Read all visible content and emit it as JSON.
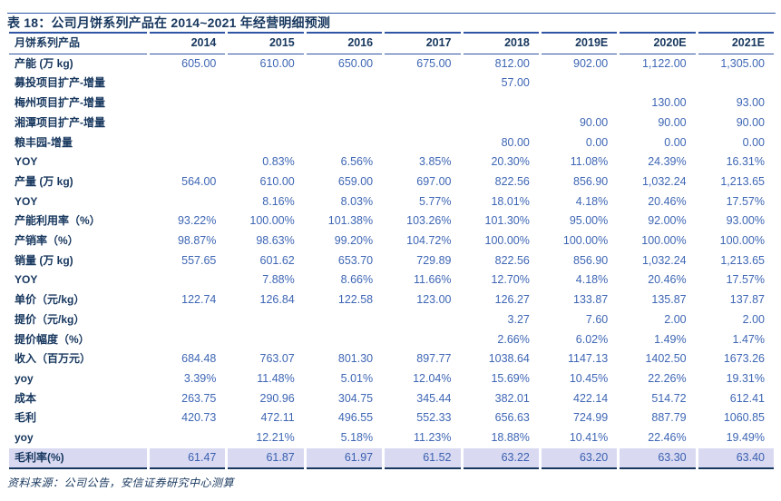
{
  "title": "表 18：公司月饼系列产品在 2014~2021 年经营明细预测",
  "source_note": "资料来源：公司公告，安信证券研究中心测算",
  "colors": {
    "title_navy": "#17375e",
    "number_blue": "#3e66b4",
    "rule": "#2f55a4",
    "highlight_bg": "#d9daf2"
  },
  "table": {
    "columns": [
      "月饼系列产品",
      "2014",
      "2015",
      "2016",
      "2017",
      "2018",
      "2019E",
      "2020E",
      "2021E"
    ],
    "rows": [
      {
        "label": "产能 (万 kg)",
        "values": [
          "605.00",
          "610.00",
          "650.00",
          "675.00",
          "812.00",
          "902.00",
          "1,122.00",
          "1,305.00"
        ]
      },
      {
        "label": "募投项目扩产-增量",
        "values": [
          "",
          "",
          "",
          "",
          "57.00",
          "",
          "",
          ""
        ]
      },
      {
        "label": "梅州项目扩产-增量",
        "values": [
          "",
          "",
          "",
          "",
          "",
          "",
          "130.00",
          "93.00"
        ]
      },
      {
        "label": "湘潭项目扩产-增量",
        "values": [
          "",
          "",
          "",
          "",
          "",
          "90.00",
          "90.00",
          "90.00"
        ]
      },
      {
        "label": "粮丰园-增量",
        "values": [
          "",
          "",
          "",
          "",
          "80.00",
          "0.00",
          "0.00",
          "0.00"
        ]
      },
      {
        "label": "YOY",
        "values": [
          "",
          "0.83%",
          "6.56%",
          "3.85%",
          "20.30%",
          "11.08%",
          "24.39%",
          "16.31%"
        ]
      },
      {
        "label": "产量 (万 kg)",
        "values": [
          "564.00",
          "610.00",
          "659.00",
          "697.00",
          "822.56",
          "856.90",
          "1,032.24",
          "1,213.65"
        ]
      },
      {
        "label": "YOY",
        "values": [
          "",
          "8.16%",
          "8.03%",
          "5.77%",
          "18.01%",
          "4.18%",
          "20.46%",
          "17.57%"
        ]
      },
      {
        "label": "产能利用率（%）",
        "values": [
          "93.22%",
          "100.00%",
          "101.38%",
          "103.26%",
          "101.30%",
          "95.00%",
          "92.00%",
          "93.00%"
        ]
      },
      {
        "label": "产销率（%）",
        "values": [
          "98.87%",
          "98.63%",
          "99.20%",
          "104.72%",
          "100.00%",
          "100.00%",
          "100.00%",
          "100.00%"
        ]
      },
      {
        "label": "销量 (万 kg)",
        "values": [
          "557.65",
          "601.62",
          "653.70",
          "729.89",
          "822.56",
          "856.90",
          "1,032.24",
          "1,213.65"
        ]
      },
      {
        "label": "YOY",
        "values": [
          "",
          "7.88%",
          "8.66%",
          "11.66%",
          "12.70%",
          "4.18%",
          "20.46%",
          "17.57%"
        ]
      },
      {
        "label": "单价（元/kg）",
        "values": [
          "122.74",
          "126.84",
          "122.58",
          "123.00",
          "126.27",
          "133.87",
          "135.87",
          "137.87"
        ]
      },
      {
        "label": "提价（元/kg）",
        "values": [
          "",
          "",
          "",
          "",
          "3.27",
          "7.60",
          "2.00",
          "2.00"
        ]
      },
      {
        "label": "提价幅度（%）",
        "values": [
          "",
          "",
          "",
          "",
          "2.66%",
          "6.02%",
          "1.49%",
          "1.47%"
        ]
      },
      {
        "label": "收入（百万元）",
        "values": [
          "684.48",
          "763.07",
          "801.30",
          "897.77",
          "1038.64",
          "1147.13",
          "1402.50",
          "1673.26"
        ]
      },
      {
        "label": "yoy",
        "values": [
          "3.39%",
          "11.48%",
          "5.01%",
          "12.04%",
          "15.69%",
          "10.45%",
          "22.26%",
          "19.31%"
        ]
      },
      {
        "label": "成本",
        "values": [
          "263.75",
          "290.96",
          "304.75",
          "345.44",
          "382.01",
          "422.14",
          "514.72",
          "612.41"
        ]
      },
      {
        "label": "毛利",
        "values": [
          "420.73",
          "472.11",
          "496.55",
          "552.33",
          "656.63",
          "724.99",
          "887.79",
          "1060.85"
        ]
      },
      {
        "label": "yoy",
        "values": [
          "",
          "12.21%",
          "5.18%",
          "11.23%",
          "18.88%",
          "10.41%",
          "22.46%",
          "19.49%"
        ]
      },
      {
        "label": "毛利率(%)",
        "values": [
          "61.47",
          "61.87",
          "61.97",
          "61.52",
          "63.22",
          "63.20",
          "63.30",
          "63.40"
        ],
        "highlight": true
      }
    ]
  }
}
